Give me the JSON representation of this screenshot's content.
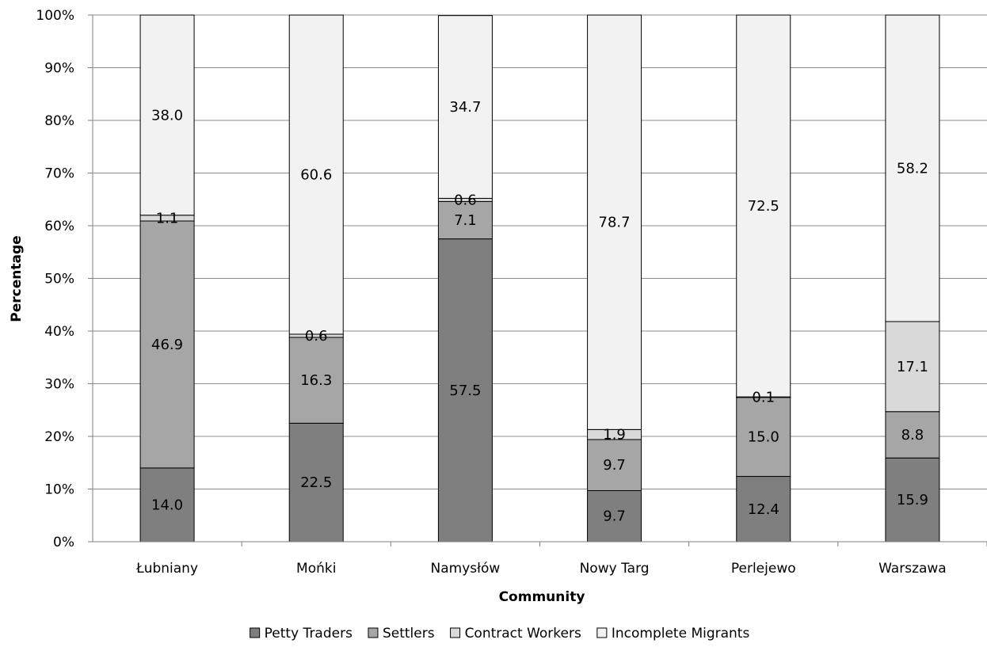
{
  "chart_data": {
    "type": "bar",
    "stacked": true,
    "percent_stacked": true,
    "categories": [
      "Łubniany",
      "Mońki",
      "Namysłów",
      "Nowy Targ",
      "Perlejewo",
      "Warszawa"
    ],
    "series": [
      {
        "name": "Petty Traders",
        "color": "#7f7f7f",
        "values": [
          14.0,
          22.5,
          57.5,
          9.7,
          12.4,
          15.9
        ]
      },
      {
        "name": "Settlers",
        "color": "#a6a6a6",
        "values": [
          46.9,
          16.3,
          7.1,
          9.7,
          15.0,
          8.8
        ]
      },
      {
        "name": "Contract Workers",
        "color": "#d9d9d9",
        "values": [
          1.1,
          0.6,
          0.6,
          1.9,
          0.1,
          17.1
        ]
      },
      {
        "name": "Incomplete Migrants",
        "color": "#f2f2f2",
        "values": [
          38.0,
          60.6,
          34.7,
          78.7,
          72.5,
          58.2
        ]
      }
    ],
    "xlabel": "Community",
    "ylabel": "Percentage",
    "ylim": [
      0,
      100
    ],
    "y_ticks": [
      "0%",
      "10%",
      "20%",
      "30%",
      "40%",
      "50%",
      "60%",
      "70%",
      "80%",
      "90%",
      "100%"
    ],
    "grid": true,
    "legend_position": "bottom"
  }
}
